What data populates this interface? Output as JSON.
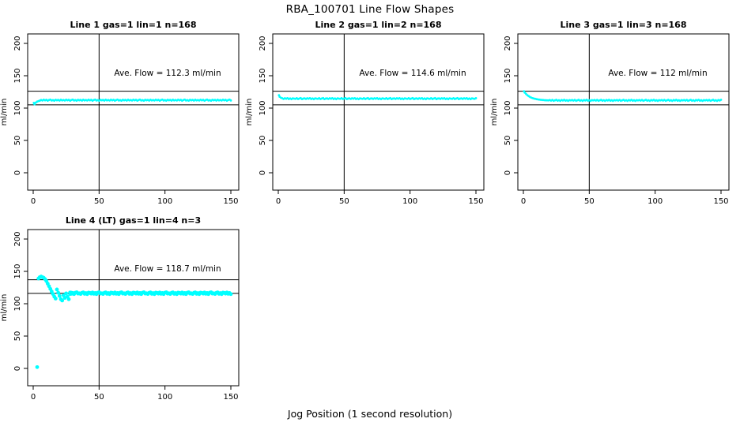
{
  "figure": {
    "title": "RBA_100701  Line Flow Shapes",
    "x_axis_label": "Jog Position (1 second resolution)",
    "y_axis_label": "ml/min",
    "point_color": "#00ffff",
    "line_color": "#000000",
    "background_color": "#ffffff"
  },
  "chart_data": [
    {
      "type": "scatter",
      "title": "Line 1 gas=1 lin=1 n=168",
      "ave_flow_text": "Ave. Flow =  112.3  ml/min",
      "ave_flow": 112.3,
      "xlabel": "Jog Position (1 second resolution)",
      "ylabel": "ml/min",
      "xlim": [
        -6,
        156
      ],
      "ylim": [
        -27,
        215
      ],
      "x_ticks": [
        0,
        50,
        100,
        150
      ],
      "y_ticks": [
        0,
        50,
        100,
        150,
        200
      ],
      "vline_x": 50,
      "hlines": [
        126,
        105
      ],
      "point_radius": 1.4,
      "transient_points": [
        [
          0.5,
          108
        ],
        [
          1,
          106
        ],
        [
          2,
          108.5
        ],
        [
          3,
          110
        ],
        [
          4,
          110.8
        ],
        [
          5,
          111.5
        ]
      ],
      "band": {
        "x_start": 6,
        "x_end": 150,
        "step": 1,
        "baseline": 112.2,
        "pattern": [
          0.3,
          -0.5,
          0.8,
          -0.2,
          0.5,
          -0.8,
          0.2,
          0.9,
          -0.4,
          0.1,
          -0.7,
          0.6,
          -0.1,
          0.4,
          -0.6,
          0.7,
          -0.3
        ]
      }
    },
    {
      "type": "scatter",
      "title": "Line 2 gas=1 lin=2 n=168",
      "ave_flow_text": "Ave. Flow =  114.6  ml/min",
      "ave_flow": 114.6,
      "xlabel": "Jog Position (1 second resolution)",
      "ylabel": "ml/min",
      "xlim": [
        -6,
        156
      ],
      "ylim": [
        -27,
        215
      ],
      "x_ticks": [
        0,
        50,
        100,
        150
      ],
      "y_ticks": [
        0,
        50,
        100,
        150,
        200
      ],
      "vline_x": 50,
      "hlines": [
        126,
        105
      ],
      "point_radius": 1.4,
      "transient_points": [
        [
          0.5,
          120
        ],
        [
          1,
          117.5
        ],
        [
          2,
          116
        ],
        [
          3,
          115.2
        ]
      ],
      "band": {
        "x_start": 4,
        "x_end": 150,
        "step": 1,
        "baseline": 114.6,
        "pattern": [
          -0.4,
          0.6,
          -0.1,
          0.8,
          -0.6,
          0.3,
          -0.8,
          0.5,
          0.0,
          -0.3,
          0.7,
          -0.5,
          0.2,
          0.9,
          -0.7,
          0.1,
          0.4
        ]
      }
    },
    {
      "type": "scatter",
      "title": "Line 3 gas=1 lin=3 n=168",
      "ave_flow_text": "Ave. Flow =  112  ml/min",
      "ave_flow": 112,
      "xlabel": "Jog Position (1 second resolution)",
      "ylabel": "ml/min",
      "xlim": [
        -6,
        156
      ],
      "ylim": [
        -27,
        215
      ],
      "x_ticks": [
        0,
        50,
        100,
        150
      ],
      "y_ticks": [
        0,
        50,
        100,
        150,
        200
      ],
      "vline_x": 50,
      "hlines": [
        126,
        105
      ],
      "point_radius": 1.4,
      "transient_points": [
        [
          0.5,
          126
        ],
        [
          1,
          124
        ],
        [
          2,
          122
        ],
        [
          3,
          120
        ],
        [
          4,
          118.5
        ],
        [
          5,
          117.2
        ],
        [
          6,
          116.2
        ],
        [
          7,
          115.4
        ],
        [
          8,
          114.8
        ],
        [
          9,
          114.3
        ],
        [
          10,
          113.8
        ],
        [
          11,
          113.4
        ],
        [
          12,
          113.1
        ],
        [
          13,
          112.8
        ],
        [
          14,
          112.6
        ],
        [
          15,
          112.4
        ],
        [
          16,
          112.2
        ],
        [
          17,
          112.1
        ],
        [
          18,
          112
        ],
        [
          19,
          111.9
        ]
      ],
      "band": {
        "x_start": 20,
        "x_end": 150,
        "step": 1,
        "baseline": 111.9,
        "pattern": [
          0.5,
          -0.3,
          0.7,
          -0.6,
          0.1,
          0.8,
          -0.5,
          0.3,
          -0.8,
          0.6,
          -0.1,
          0.9,
          -0.4,
          0.2,
          -0.7,
          0.4,
          0.0
        ]
      }
    },
    {
      "type": "scatter",
      "title": "Line 4 (LT) gas=1 lin=4 n=3",
      "ave_flow_text": "Ave. Flow =  118.7  ml/min",
      "ave_flow": 118.7,
      "xlabel": "Jog Position (1 second resolution)",
      "ylabel": "ml/min",
      "xlim": [
        -6,
        156
      ],
      "ylim": [
        -27,
        215
      ],
      "x_ticks": [
        0,
        50,
        100,
        150
      ],
      "y_ticks": [
        0,
        50,
        100,
        150,
        200
      ],
      "vline_x": 50,
      "hlines": [
        137,
        116
      ],
      "point_radius": 2.4,
      "transient_points": [
        [
          3,
          2
        ],
        [
          4,
          139
        ],
        [
          5,
          141
        ],
        [
          6,
          142
        ],
        [
          7,
          141
        ],
        [
          8,
          140
        ],
        [
          9,
          138
        ],
        [
          10,
          135
        ],
        [
          11,
          131
        ],
        [
          12,
          127
        ],
        [
          13,
          123
        ],
        [
          14,
          119
        ],
        [
          15,
          115
        ],
        [
          16,
          111
        ],
        [
          17,
          108
        ],
        [
          18,
          122
        ],
        [
          19,
          117
        ],
        [
          20,
          112
        ],
        [
          21,
          107
        ],
        [
          22,
          105
        ],
        [
          23,
          113
        ],
        [
          24,
          109
        ],
        [
          25,
          116
        ],
        [
          26,
          111
        ],
        [
          27,
          107
        ],
        [
          28,
          115
        ],
        [
          29,
          117
        ],
        [
          30,
          116
        ]
      ],
      "band": {
        "x_start": 28,
        "x_end": 150,
        "step": 1,
        "baseline": 116.2,
        "pattern": [
          1.2,
          -0.8,
          0.4,
          -1.3,
          0.9,
          1.5,
          -0.5,
          0.0,
          -1.1,
          0.7,
          1.3,
          -0.9,
          0.2,
          -1.4,
          1.0,
          0.5,
          -0.6
        ]
      }
    }
  ]
}
